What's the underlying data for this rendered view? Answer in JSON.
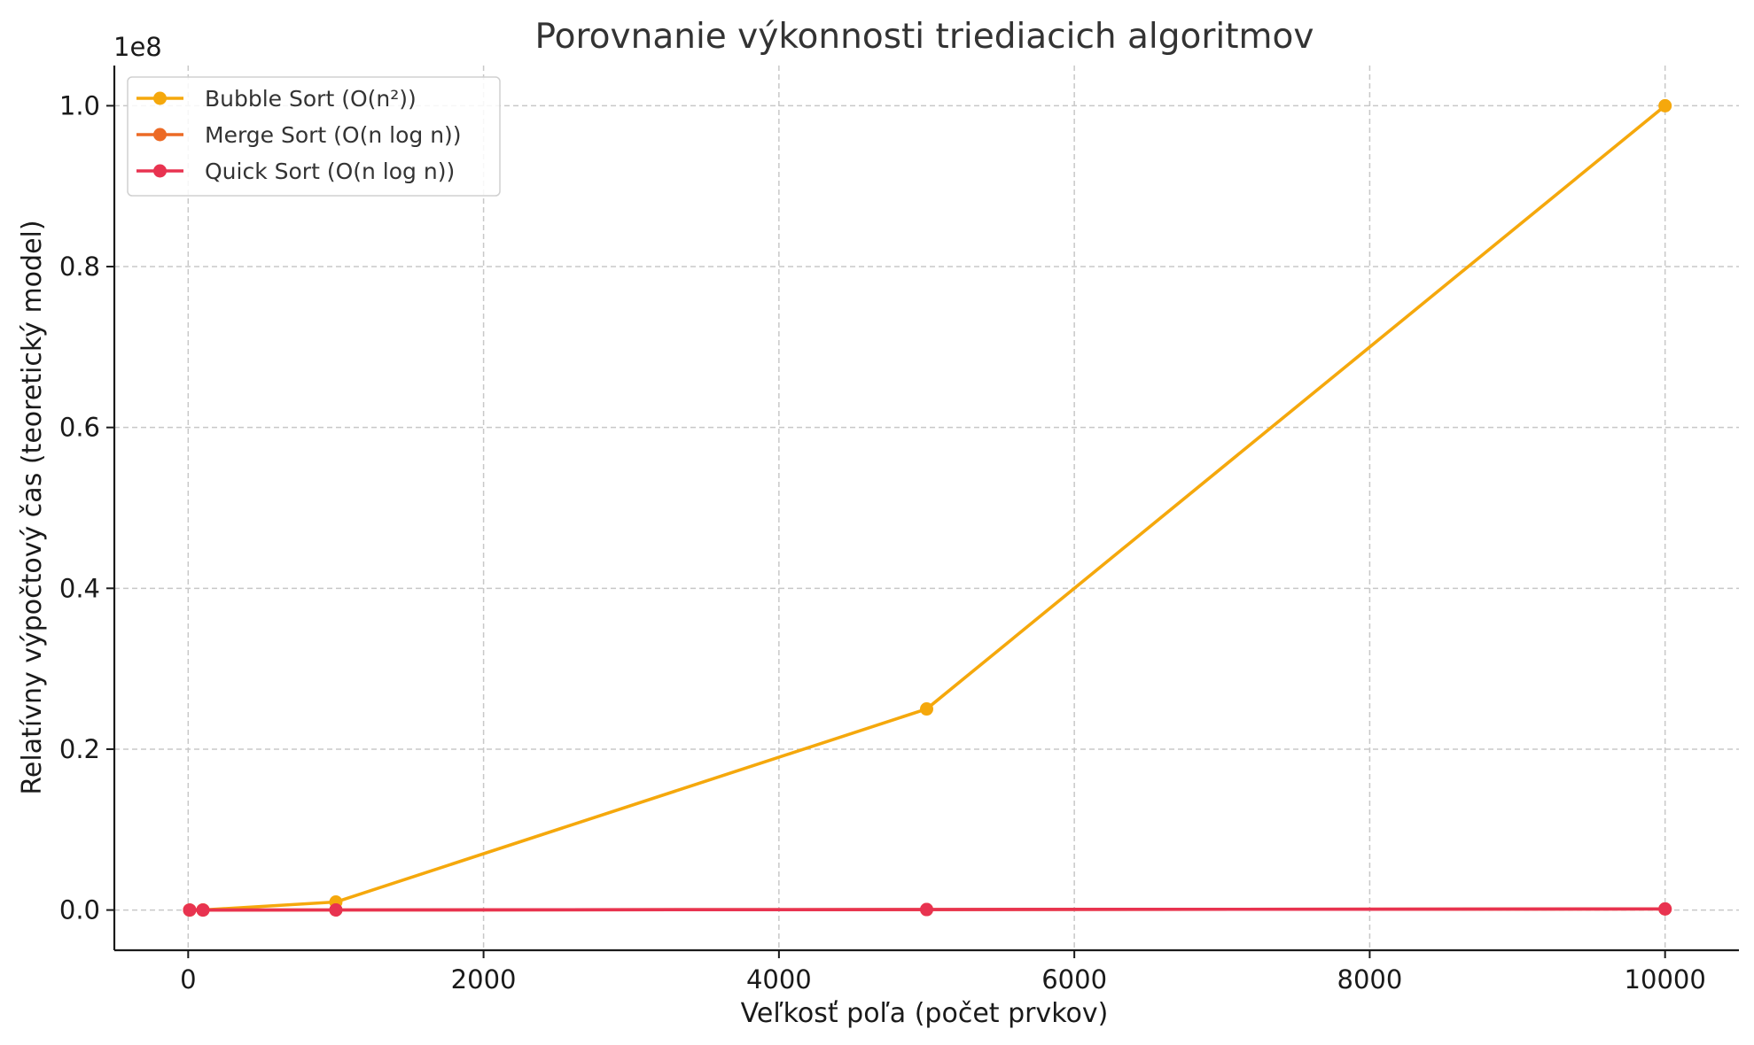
{
  "chart_data": {
    "type": "line",
    "title": "Porovnanie výkonnosti triediacich algoritmov",
    "xlabel": "Veľkosť poľa (počet prvkov)",
    "ylabel": "Relatívny výpočtový čas (teoretický model)",
    "y_offset_label": "1e8",
    "x": [
      10,
      100,
      1000,
      5000,
      10000
    ],
    "xlim": [
      -500,
      10500
    ],
    "ylim": [
      -5000000,
      105000000
    ],
    "x_ticks": [
      0,
      2000,
      4000,
      6000,
      8000,
      10000
    ],
    "x_tick_labels": [
      "0",
      "2000",
      "4000",
      "6000",
      "8000",
      "10000"
    ],
    "y_ticks": [
      0,
      20000000,
      40000000,
      60000000,
      80000000,
      100000000
    ],
    "y_tick_labels": [
      "0.0",
      "0.2",
      "0.4",
      "0.6",
      "0.8",
      "1.0"
    ],
    "grid": true,
    "legend_position": "top-left",
    "series": [
      {
        "name": "Bubble Sort (O(n²))",
        "color": "#f5a80c",
        "values": [
          100,
          10000,
          1000000,
          25000000,
          100000000
        ]
      },
      {
        "name": "Merge Sort (O(n log n))",
        "color": "#ec6a25",
        "values": [
          33,
          664,
          9966,
          61439,
          132877
        ]
      },
      {
        "name": "Quick Sort (O(n log n))",
        "color": "#e83350",
        "values": [
          33,
          664,
          9966,
          61439,
          132877
        ]
      }
    ]
  }
}
